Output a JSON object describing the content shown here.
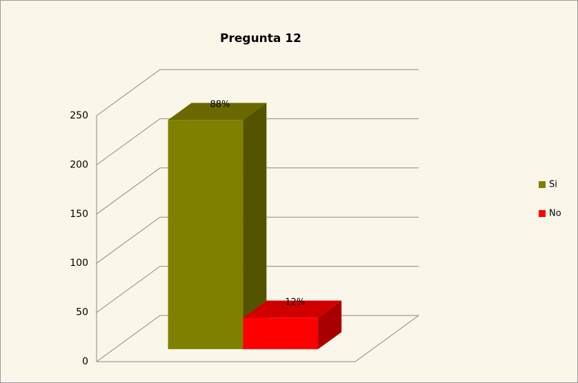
{
  "chart_data": {
    "type": "bar3d",
    "title": "Pregunta 12",
    "categories": [
      null
    ],
    "series": [
      {
        "name": "Si",
        "color": "#808000",
        "values": [
          233
        ],
        "value_labels": [
          "88%"
        ]
      },
      {
        "name": "No",
        "color": "#ff0000",
        "values": [
          32
        ],
        "value_labels": [
          "12%"
        ]
      }
    ],
    "ylim": [
      0,
      250
    ],
    "yticks": [
      0,
      50,
      100,
      150,
      200,
      250
    ],
    "grid": true,
    "legend": "right"
  }
}
